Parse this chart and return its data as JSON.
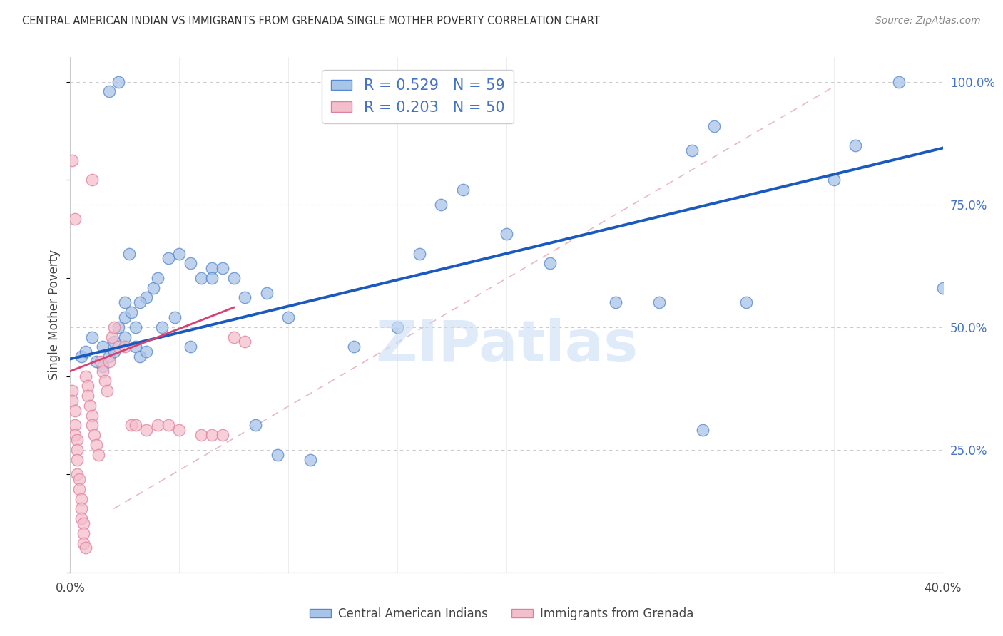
{
  "title": "CENTRAL AMERICAN INDIAN VS IMMIGRANTS FROM GRENADA SINGLE MOTHER POVERTY CORRELATION CHART",
  "source": "Source: ZipAtlas.com",
  "ylabel": "Single Mother Poverty",
  "yticks": [
    0.0,
    0.25,
    0.5,
    0.75,
    1.0
  ],
  "yticklabels_right": [
    "",
    "25.0%",
    "50.0%",
    "75.0%",
    "100.0%"
  ],
  "xlim": [
    0.0,
    0.4
  ],
  "ylim": [
    0.0,
    1.05
  ],
  "legend_blue_R": "R = 0.529",
  "legend_blue_N": "N = 59",
  "legend_pink_R": "R = 0.203",
  "legend_pink_N": "N = 50",
  "blue_color": "#a8c4e8",
  "pink_color": "#f4bfcc",
  "blue_edge_color": "#5588cc",
  "pink_edge_color": "#e080a0",
  "blue_line_color": "#1a5abf",
  "pink_line_color": "#d94070",
  "diag_line_color": "#e8b8c8",
  "watermark": "ZIPatlas",
  "watermark_color": "#ccdff5",
  "blue_line_x": [
    0.0,
    0.4
  ],
  "blue_line_y": [
    0.435,
    0.865
  ],
  "pink_line_x": [
    0.0,
    0.075
  ],
  "pink_line_y": [
    0.41,
    0.54
  ],
  "diag_line_x": [
    0.02,
    0.35
  ],
  "diag_line_y": [
    0.13,
    0.99
  ],
  "blue_scatter_x": [
    0.005,
    0.007,
    0.01,
    0.012,
    0.015,
    0.015,
    0.018,
    0.02,
    0.02,
    0.022,
    0.025,
    0.025,
    0.028,
    0.03,
    0.03,
    0.032,
    0.035,
    0.035,
    0.038,
    0.04,
    0.045,
    0.05,
    0.055,
    0.06,
    0.065,
    0.07,
    0.08,
    0.09,
    0.1,
    0.11,
    0.13,
    0.15,
    0.17,
    0.2,
    0.22,
    0.25,
    0.27,
    0.29,
    0.31,
    0.35,
    0.36,
    0.38,
    0.4,
    0.285,
    0.295,
    0.018,
    0.022,
    0.025,
    0.027,
    0.032,
    0.042,
    0.048,
    0.055,
    0.065,
    0.075,
    0.085,
    0.095,
    0.16,
    0.18
  ],
  "blue_scatter_y": [
    0.44,
    0.45,
    0.48,
    0.43,
    0.42,
    0.46,
    0.44,
    0.45,
    0.47,
    0.5,
    0.52,
    0.48,
    0.53,
    0.5,
    0.46,
    0.44,
    0.56,
    0.45,
    0.58,
    0.6,
    0.64,
    0.65,
    0.63,
    0.6,
    0.62,
    0.62,
    0.56,
    0.57,
    0.52,
    0.23,
    0.46,
    0.5,
    0.75,
    0.69,
    0.63,
    0.55,
    0.55,
    0.29,
    0.55,
    0.8,
    0.87,
    1.0,
    0.58,
    0.86,
    0.91,
    0.98,
    1.0,
    0.55,
    0.65,
    0.55,
    0.5,
    0.52,
    0.46,
    0.6,
    0.6,
    0.3,
    0.24,
    0.65,
    0.78
  ],
  "pink_scatter_x": [
    0.001,
    0.001,
    0.002,
    0.002,
    0.002,
    0.003,
    0.003,
    0.003,
    0.003,
    0.004,
    0.004,
    0.005,
    0.005,
    0.005,
    0.006,
    0.006,
    0.006,
    0.007,
    0.007,
    0.008,
    0.008,
    0.009,
    0.01,
    0.01,
    0.011,
    0.012,
    0.013,
    0.014,
    0.015,
    0.016,
    0.017,
    0.018,
    0.019,
    0.02,
    0.022,
    0.025,
    0.028,
    0.03,
    0.035,
    0.04,
    0.045,
    0.05,
    0.06,
    0.065,
    0.07,
    0.075,
    0.08,
    0.001,
    0.002,
    0.01
  ],
  "pink_scatter_y": [
    0.37,
    0.35,
    0.33,
    0.3,
    0.28,
    0.27,
    0.25,
    0.23,
    0.2,
    0.19,
    0.17,
    0.15,
    0.13,
    0.11,
    0.1,
    0.08,
    0.06,
    0.05,
    0.4,
    0.38,
    0.36,
    0.34,
    0.32,
    0.3,
    0.28,
    0.26,
    0.24,
    0.43,
    0.41,
    0.39,
    0.37,
    0.43,
    0.48,
    0.5,
    0.46,
    0.46,
    0.3,
    0.3,
    0.29,
    0.3,
    0.3,
    0.29,
    0.28,
    0.28,
    0.28,
    0.48,
    0.47,
    0.84,
    0.72,
    0.8
  ],
  "background_color": "#ffffff",
  "grid_color": "#cccccc",
  "xtick_positions": [
    0.0,
    0.05,
    0.1,
    0.15,
    0.2,
    0.25,
    0.3,
    0.35,
    0.4
  ],
  "xtick_labels": [
    "0.0%",
    "",
    "",
    "",
    "",
    "",
    "",
    "",
    "40.0%"
  ],
  "ylabel_color": "#444444",
  "right_tick_color": "#4472c4",
  "title_color": "#333333",
  "source_color": "#888888",
  "legend_label_color": "#4472c4",
  "bottom_label_color": "#444444"
}
